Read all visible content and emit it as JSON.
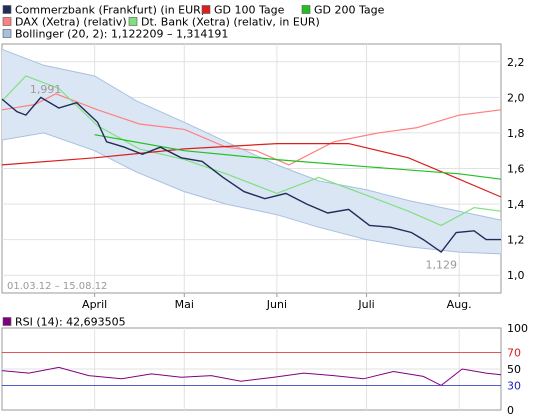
{
  "chart_data": [
    {
      "type": "line",
      "x_range": [
        "2012-03-01",
        "2012-08-15"
      ],
      "date_range_label": "01.03.12 – 15.08.12",
      "month_labels": [
        "April",
        "Mai",
        "Juni",
        "Juli",
        "Aug."
      ],
      "yticks": [
        "2,2",
        "2,0",
        "1,8",
        "1,6",
        "1,4",
        "1,2",
        "1,0"
      ],
      "ylim": [
        0.9,
        2.3
      ],
      "grid": true,
      "legend_placement": "top",
      "annotations": [
        {
          "text": "1,991",
          "x": "2012-03-09",
          "y": 1.991
        },
        {
          "text": "1,129",
          "x": "2012-07-26",
          "y": 1.129
        }
      ],
      "legend": [
        {
          "label": "Commerzbank (Frankfurt) (in EUR)",
          "color": "#1f2d5a"
        },
        {
          "label": "GD 100 Tage",
          "color": "#d92020"
        },
        {
          "label": "GD 200 Tage",
          "color": "#22c022"
        },
        {
          "label": "DAX (Xetra) (relativ)",
          "color": "#ff8080"
        },
        {
          "label": "Dt. Bank (Xetra) (relativ, in EUR)",
          "color": "#80e080"
        },
        {
          "label": "Bollinger (20, 2): 1,122209 – 1,314191",
          "color": "#a8c0e0"
        }
      ],
      "series": [
        {
          "name": "Commerzbank (Frankfurt) (in EUR)",
          "x": [
            "2012-03-01",
            "2012-03-06",
            "2012-03-09",
            "2012-03-14",
            "2012-03-20",
            "2012-03-26",
            "2012-04-02",
            "2012-04-05",
            "2012-04-11",
            "2012-04-17",
            "2012-04-23",
            "2012-04-30",
            "2012-05-07",
            "2012-05-14",
            "2012-05-21",
            "2012-05-28",
            "2012-06-04",
            "2012-06-11",
            "2012-06-18",
            "2012-06-25",
            "2012-07-02",
            "2012-07-09",
            "2012-07-16",
            "2012-07-20",
            "2012-07-26",
            "2012-07-31",
            "2012-08-06",
            "2012-08-10",
            "2012-08-15"
          ],
          "values": [
            1.99,
            1.92,
            1.9,
            2.0,
            1.94,
            1.97,
            1.86,
            1.75,
            1.72,
            1.68,
            1.72,
            1.66,
            1.64,
            1.55,
            1.47,
            1.43,
            1.46,
            1.4,
            1.35,
            1.37,
            1.28,
            1.27,
            1.24,
            1.2,
            1.13,
            1.24,
            1.25,
            1.2,
            1.2
          ]
        },
        {
          "name": "GD 100 Tage",
          "x": [
            "2012-03-01",
            "2012-04-01",
            "2012-05-01",
            "2012-06-01",
            "2012-06-25",
            "2012-07-15",
            "2012-08-01",
            "2012-08-15"
          ],
          "values": [
            1.62,
            1.66,
            1.71,
            1.74,
            1.74,
            1.66,
            1.54,
            1.44
          ]
        },
        {
          "name": "GD 200 Tage",
          "x": [
            "2012-04-01",
            "2012-05-01",
            "2012-06-01",
            "2012-07-01",
            "2012-08-01",
            "2012-08-15"
          ],
          "values": [
            1.79,
            1.7,
            1.65,
            1.61,
            1.57,
            1.54
          ]
        },
        {
          "name": "DAX (Xetra) (relativ)",
          "x": [
            "2012-03-01",
            "2012-03-12",
            "2012-03-19",
            "2012-04-02",
            "2012-04-16",
            "2012-05-01",
            "2012-05-15",
            "2012-05-25",
            "2012-06-05",
            "2012-06-20",
            "2012-07-05",
            "2012-07-18",
            "2012-08-01",
            "2012-08-15"
          ],
          "values": [
            1.93,
            1.96,
            2.02,
            1.93,
            1.85,
            1.82,
            1.72,
            1.7,
            1.62,
            1.75,
            1.8,
            1.83,
            1.9,
            1.93
          ]
        },
        {
          "name": "Dt. Bank (Xetra) (relativ, in EUR)",
          "x": [
            "2012-03-01",
            "2012-03-09",
            "2012-03-20",
            "2012-04-02",
            "2012-04-16",
            "2012-05-01",
            "2012-05-15",
            "2012-06-01",
            "2012-06-15",
            "2012-07-01",
            "2012-07-15",
            "2012-07-26",
            "2012-08-06",
            "2012-08-15"
          ],
          "values": [
            1.98,
            2.12,
            2.05,
            1.84,
            1.71,
            1.65,
            1.57,
            1.46,
            1.55,
            1.45,
            1.36,
            1.28,
            1.38,
            1.36
          ]
        },
        {
          "name": "Bollinger (20, 2): 1,122209 – 1,314191",
          "x": [
            "2012-03-01",
            "2012-03-15",
            "2012-04-01",
            "2012-04-15",
            "2012-05-01",
            "2012-05-15",
            "2012-06-01",
            "2012-06-15",
            "2012-07-01",
            "2012-07-15",
            "2012-08-01",
            "2012-08-15"
          ],
          "upper": [
            2.27,
            2.18,
            2.12,
            1.98,
            1.86,
            1.75,
            1.62,
            1.53,
            1.48,
            1.42,
            1.36,
            1.31
          ],
          "lower": [
            1.76,
            1.8,
            1.7,
            1.58,
            1.47,
            1.4,
            1.34,
            1.27,
            1.2,
            1.16,
            1.13,
            1.12
          ]
        }
      ]
    },
    {
      "type": "line",
      "legend": [
        {
          "label": "RSI (14): 42,693505",
          "color": "#800080"
        }
      ],
      "yticks": [
        "100",
        "70",
        "50",
        "30",
        "0"
      ],
      "ylim": [
        0,
        100
      ],
      "reference_lines": [
        70,
        30
      ],
      "series": [
        {
          "name": "RSI (14): 42,693505",
          "x": [
            "2012-03-01",
            "2012-03-10",
            "2012-03-20",
            "2012-03-30",
            "2012-04-10",
            "2012-04-20",
            "2012-04-30",
            "2012-05-10",
            "2012-05-20",
            "2012-05-31",
            "2012-06-10",
            "2012-06-20",
            "2012-06-30",
            "2012-07-10",
            "2012-07-20",
            "2012-07-26",
            "2012-08-02",
            "2012-08-10",
            "2012-08-15"
          ],
          "values": [
            48,
            45,
            52,
            42,
            38,
            44,
            40,
            42,
            35,
            40,
            45,
            42,
            38,
            47,
            41,
            30,
            50,
            45,
            43
          ]
        }
      ]
    }
  ]
}
